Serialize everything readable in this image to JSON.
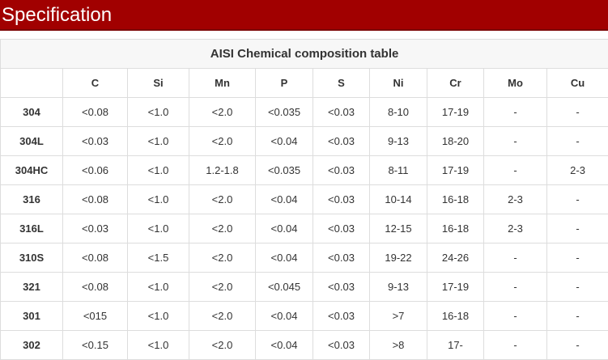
{
  "header": {
    "title": "Specification"
  },
  "table": {
    "caption": "AISI Chemical composition table",
    "columns": [
      "C",
      "Si",
      "Mn",
      "P",
      "S",
      "Ni",
      "Cr",
      "Mo",
      "Cu"
    ],
    "rows": [
      [
        "304",
        "<0.08",
        "<1.0",
        "<2.0",
        "<0.035",
        "<0.03",
        "8-10",
        "17-19",
        "-",
        "-"
      ],
      [
        "304L",
        "<0.03",
        "<1.0",
        "<2.0",
        "<0.04",
        "<0.03",
        "9-13",
        "18-20",
        "-",
        "-"
      ],
      [
        "304HC",
        "<0.06",
        "<1.0",
        "1.2-1.8",
        "<0.035",
        "<0.03",
        "8-11",
        "17-19",
        "-",
        "2-3"
      ],
      [
        "316",
        "<0.08",
        "<1.0",
        "<2.0",
        "<0.04",
        "<0.03",
        "10-14",
        "16-18",
        "2-3",
        "-"
      ],
      [
        "316L",
        "<0.03",
        "<1.0",
        "<2.0",
        "<0.04",
        "<0.03",
        "12-15",
        "16-18",
        "2-3",
        "-"
      ],
      [
        "310S",
        "<0.08",
        "<1.5",
        "<2.0",
        "<0.04",
        "<0.03",
        "19-22",
        "24-26",
        "-",
        "-"
      ],
      [
        "321",
        "<0.08",
        "<1.0",
        "<2.0",
        "<0.045",
        "<0.03",
        "9-13",
        "17-19",
        "-",
        "-"
      ],
      [
        "301",
        "<015",
        "<1.0",
        "<2.0",
        "<0.04",
        "<0.03",
        ">7",
        "16-18",
        "-",
        "-"
      ],
      [
        "302",
        "<0.15",
        "<1.0",
        "<2.0",
        "<0.04",
        "<0.03",
        ">8",
        "17-",
        "-",
        "-"
      ]
    ]
  }
}
